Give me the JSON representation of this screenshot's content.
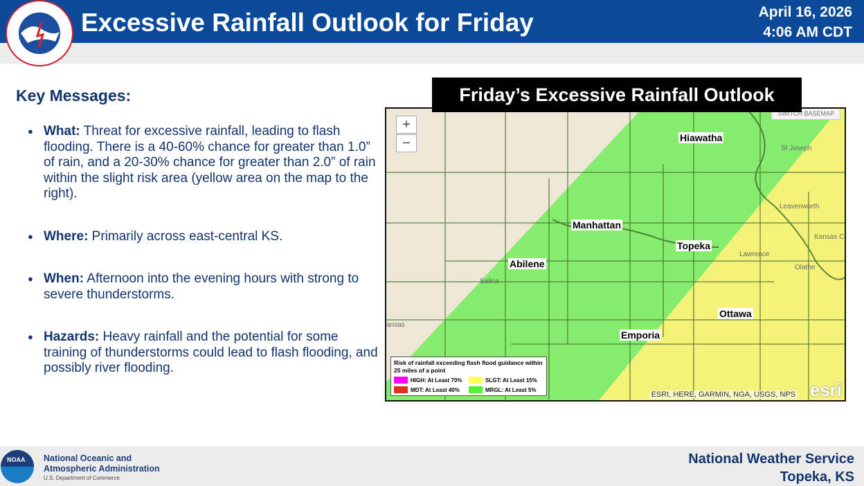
{
  "header": {
    "title": "Excessive Rainfall Outlook for Friday",
    "date": "April 16, 2026",
    "time": "4:06 AM CDT",
    "logo_text": "NATIONAL WEATHER SERVICE"
  },
  "key_messages": {
    "heading": "Key Messages:",
    "items": [
      {
        "label": "What:",
        "text": " Threat for excessive rainfall, leading to flash flooding. There is a 40-60% chance for greater than 1.0” of rain, and a 20-30% chance for greater than 2.0” of rain within the slight risk area (yellow area on the map to the right)."
      },
      {
        "label": "Where:",
        "text": " Primarily across east-central KS."
      },
      {
        "label": "When:",
        "text": " Afternoon into the evening hours with strong to severe thunderstorms."
      },
      {
        "label": "Hazards:",
        "text": " Heavy rainfall and the potential for some training of thunderstorms could lead to flash flooding, and possibly river flooding."
      }
    ]
  },
  "map": {
    "title": "Friday’s Excessive Rainfall Outlook",
    "zoom_in": "+",
    "zoom_out": "−",
    "basemap_button": "SWITCH BASEMAP",
    "cities": {
      "hiawatha": "Hiawatha",
      "manhattan": "Manhattan",
      "topeka": "Topeka",
      "abilene": "Abilene",
      "ottawa": "Ottawa",
      "emporia": "Emporia"
    },
    "towns": {
      "salina": "Salina",
      "st_joseph": "St Joseph",
      "leavenworth": "Leavenworth",
      "kansas_city": "Kansas C",
      "olathe": "Olathe",
      "lawrence": "Lawrence",
      "kansas": "ansas"
    },
    "legend": {
      "title": "Risk of rainfall exceeding flash flood guidance within 25 miles of a point",
      "items": [
        {
          "label": "HIGH: At Least 70%",
          "color": "#ff00ff"
        },
        {
          "label": "SLGT: At Least 15%",
          "color": "#ffff55"
        },
        {
          "label": "MDT: At Least 40%",
          "color": "#e03020"
        },
        {
          "label": "MRGL: At Least 5%",
          "color": "#55ee33"
        }
      ]
    },
    "attribution": "ESRI, HERE, GARMIN, NGA, USGS, NPS",
    "esri_logo": "esri",
    "colors": {
      "marginal": "#86ec6e",
      "slight": "#f5f27a"
    }
  },
  "footer": {
    "org_line1": "National Oceanic and",
    "org_line2": "Atmospheric Administration",
    "dept": "U.S. Department of Commerce",
    "noaa_logo": "NOAA",
    "nws": "National Weather Service",
    "office": "Topeka, KS"
  }
}
